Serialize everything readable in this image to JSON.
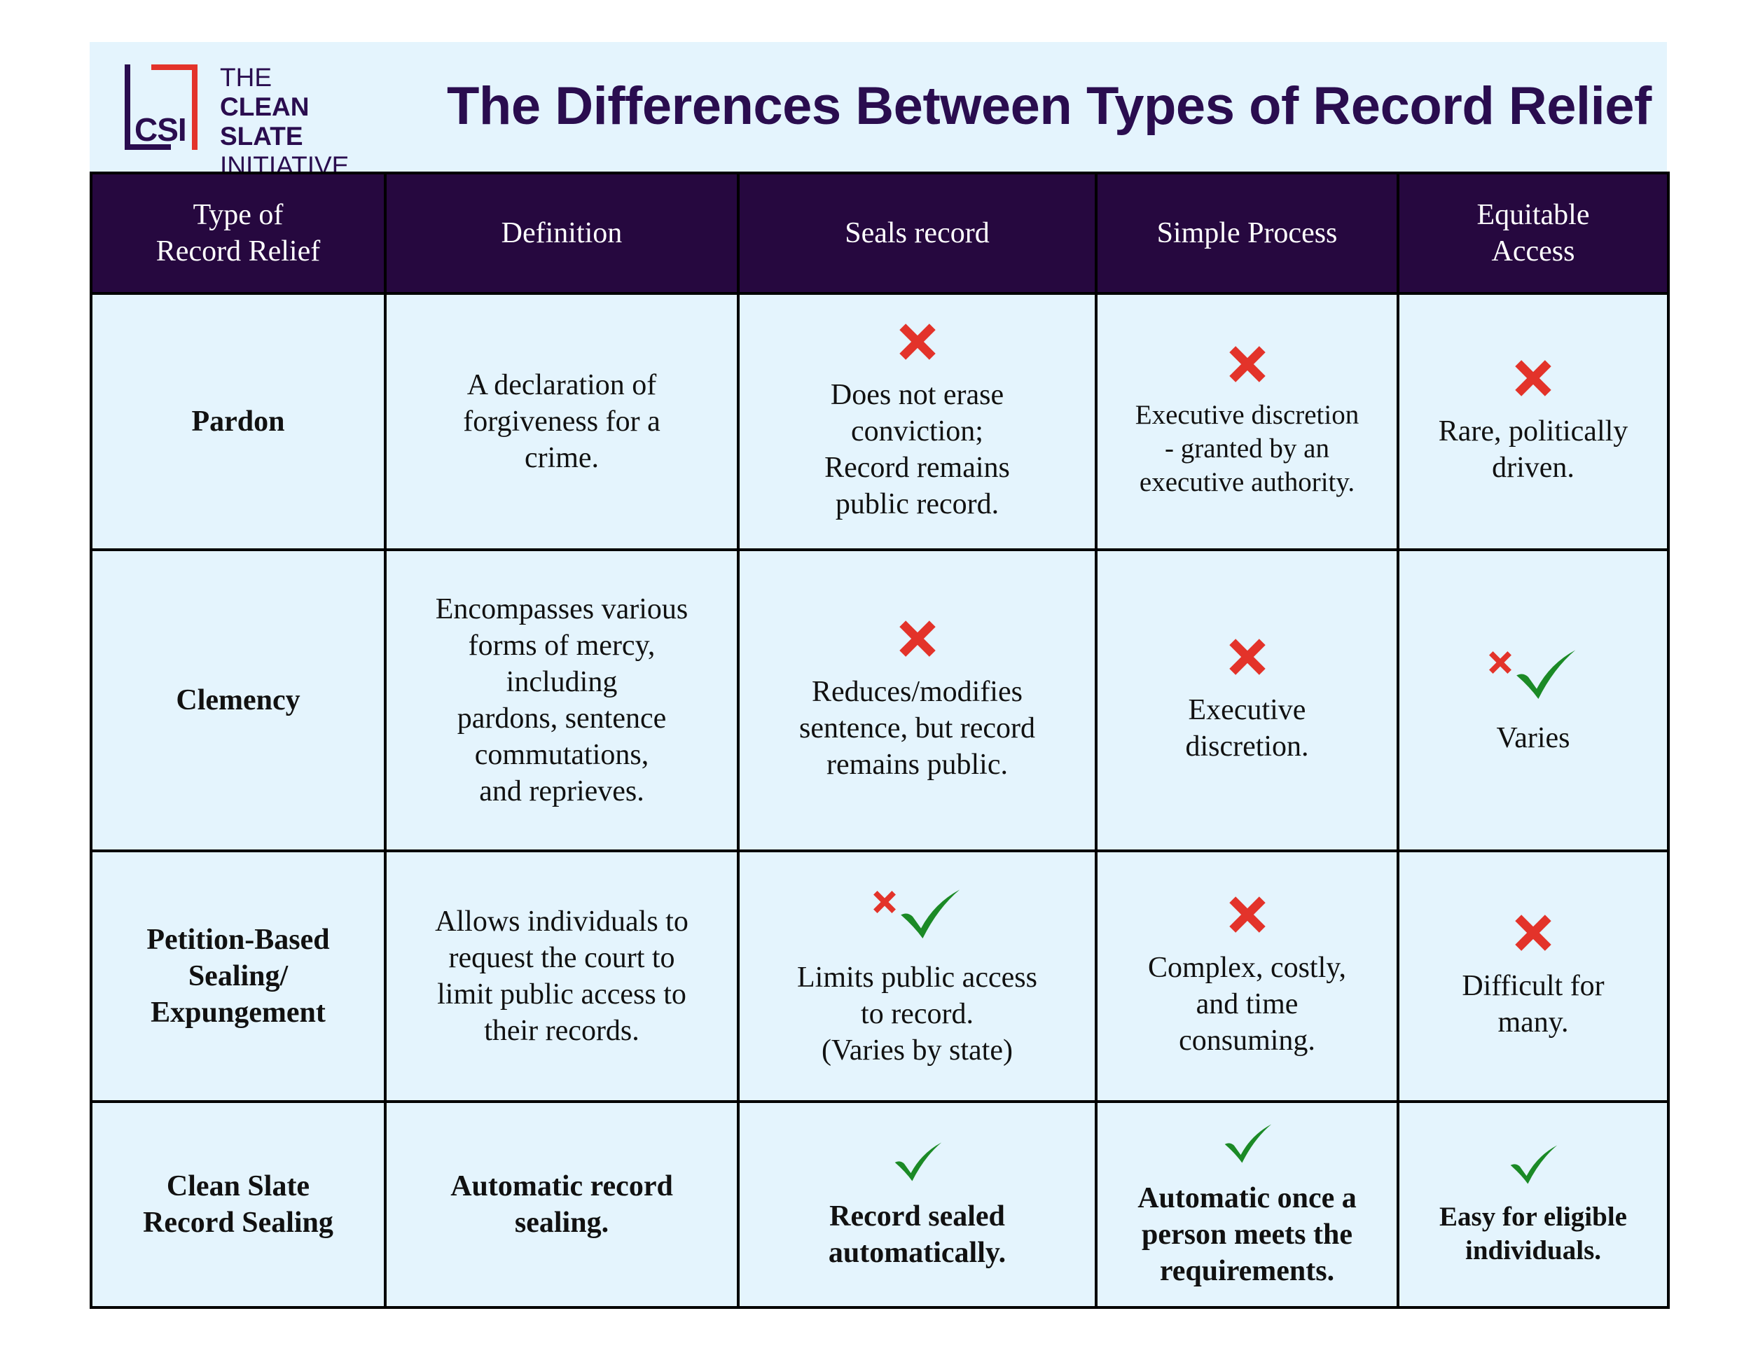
{
  "logo": {
    "abbr": "CSI",
    "line1": "THE",
    "line2": "CLEAN SLATE",
    "line3": "INITIATIVE"
  },
  "title": "The Differences Between Types of Record Relief",
  "colors": {
    "navy": "#26083f",
    "red": "#e3332a",
    "green": "#1b8a26",
    "light_blue": "#e4f4fd"
  },
  "headers": [
    "Type of\nRecord Relief",
    "Definition",
    "Seals record",
    "Simple Process",
    "Equitable\nAccess"
  ],
  "rows": [
    {
      "type": "Pardon",
      "definition": "A declaration of\nforgiveness for a\ncrime.",
      "seals": {
        "mark": "cross-icon",
        "text": "Does not erase\nconviction;\nRecord remains\npublic record."
      },
      "process": {
        "mark": "cross-icon",
        "text": "Executive discretion\n- granted by an\nexecutive authority."
      },
      "access": {
        "mark": "cross-icon",
        "text": "Rare, politically\ndriven."
      }
    },
    {
      "type": "Clemency",
      "definition": "Encompasses various\nforms of mercy,\nincluding\npardons, sentence\ncommutations,\nand reprieves.",
      "seals": {
        "mark": "cross-icon",
        "text": "Reduces/modifies\nsentence, but record\nremains public."
      },
      "process": {
        "mark": "cross-icon",
        "text": "Executive\ndiscretion."
      },
      "access": {
        "mark": "mixed-icon",
        "text": "Varies"
      }
    },
    {
      "type": "Petition-Based\nSealing/\nExpungement",
      "definition": "Allows individuals to\nrequest the court to\nlimit public access to\ntheir records.",
      "seals": {
        "mark": "mixed-icon",
        "text": "Limits public access\nto record.\n(Varies by state)"
      },
      "process": {
        "mark": "cross-icon",
        "text": "Complex, costly,\nand time\nconsuming."
      },
      "access": {
        "mark": "cross-icon",
        "text": "Difficult for\nmany."
      }
    },
    {
      "type": "Clean Slate\nRecord Sealing",
      "definition": "Automatic record\nsealing.",
      "seals": {
        "mark": "check-icon",
        "text": "Record sealed\nautomatically."
      },
      "process": {
        "mark": "check-icon",
        "text": "Automatic once a\nperson meets the\nrequirements."
      },
      "access": {
        "mark": "check-icon",
        "text": "Easy for eligible\nindividuals."
      }
    }
  ]
}
